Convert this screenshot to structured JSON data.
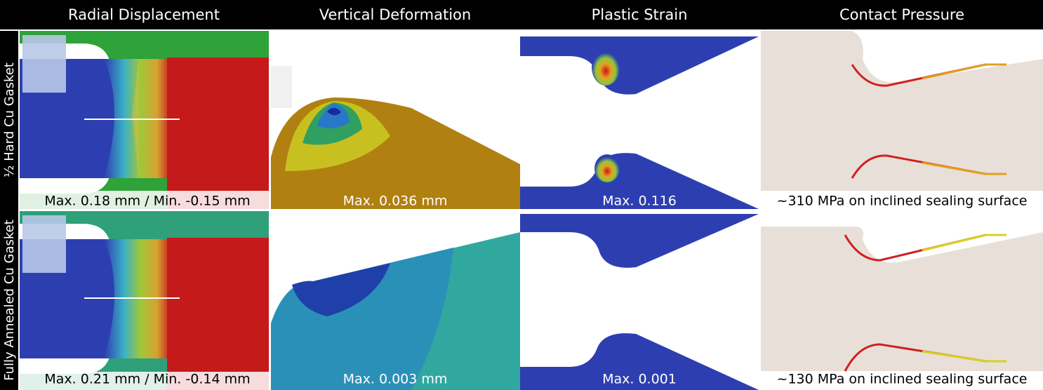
{
  "headers": [
    "Radial Displacement",
    "Vertical Deformation",
    "Plastic Strain",
    "Contact Pressure"
  ],
  "rows": [
    {
      "label": "½ Hard Cu Gasket",
      "captions": [
        "Max. 0.18 mm / Min. -0.15 mm",
        "Max. 0.036 mm",
        "Max. 0.116",
        "~310 MPa on inclined sealing surface"
      ]
    },
    {
      "label": "Fully Annealed Cu Gasket",
      "captions": [
        "Max. 0.21 mm / Min. -0.14 mm",
        "Max. 0.003 mm",
        "Max. 0.001",
        "~130 MPa on inclined sealing surface"
      ]
    }
  ]
}
